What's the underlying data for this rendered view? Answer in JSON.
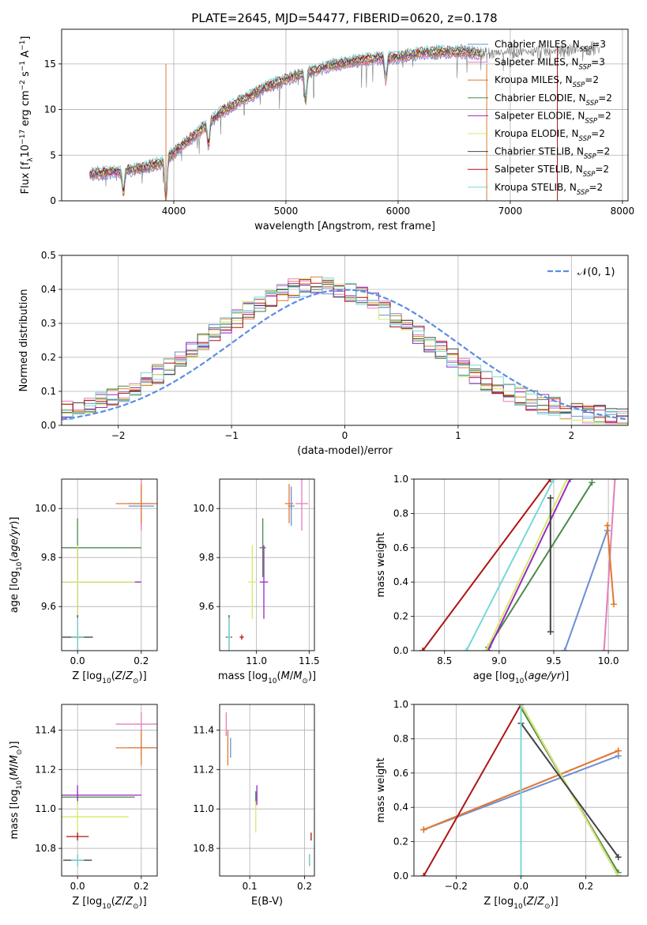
{
  "figure_title": "PLATE=2645, MJD=54477, FIBERID=0620, z=0.178",
  "colors": {
    "Chabrier MILES": "#6b8ed6",
    "Salpeter MILES": "#e47fbb",
    "Kroupa MILES": "#e07a2e",
    "Chabrier ELODIE": "#4c8a4c",
    "Salpeter ELODIE": "#9b27c4",
    "Kroupa ELODIE": "#d4ea6a",
    "Chabrier STELIB": "#444444",
    "Salpeter STELIB": "#b01414",
    "Kroupa STELIB": "#78d8d8",
    "normal": "#5b8ee0",
    "data": "#7f7f7f"
  },
  "chart_data": [
    {
      "type": "line",
      "id": "spectrum",
      "xlabel": "wavelength [Angstrom, rest frame]",
      "ylabel": "Flux [fλ10⁻¹⁷ erg cm⁻² s⁻¹ A⁻¹]",
      "xlim": [
        3000,
        8050
      ],
      "ylim": [
        0,
        18.8
      ],
      "xticks": [
        4000,
        5000,
        6000,
        7000,
        8000
      ],
      "yticks": [
        0,
        5,
        10,
        15
      ],
      "legend": "top-right",
      "legend_entries": [
        {
          "model": "Chabrier MILES",
          "nssp": "3"
        },
        {
          "model": "Salpeter MILES",
          "nssp": "3"
        },
        {
          "model": "Kroupa MILES",
          "nssp": "2"
        },
        {
          "model": "Chabrier ELODIE",
          "nssp": "2"
        },
        {
          "model": "Salpeter ELODIE",
          "nssp": "2"
        },
        {
          "model": "Kroupa ELODIE",
          "nssp": "2"
        },
        {
          "model": "Chabrier STELIB",
          "nssp": "2"
        },
        {
          "model": "Salpeter STELIB",
          "nssp": "2"
        },
        {
          "model": "Kroupa STELIB",
          "nssp": "2"
        }
      ],
      "continuum": {
        "x": [
          3250,
          3500,
          3700,
          3900,
          4000,
          4200,
          4400,
          4600,
          4800,
          5000,
          5200,
          5400,
          5600,
          5800,
          6000,
          6200,
          6400,
          6600,
          6800,
          7000,
          7200,
          7400,
          7600,
          7800
        ],
        "y": [
          2.9,
          3.2,
          3.5,
          4.2,
          5.3,
          7.3,
          9.5,
          11.0,
          12.3,
          13.3,
          14.1,
          14.8,
          15.3,
          15.6,
          15.7,
          16.2,
          16.3,
          16.3,
          16.0,
          16.5,
          16.3,
          16.4,
          16.6,
          16.7
        ]
      },
      "notches": [
        {
          "x": 3550,
          "depth": 2.5
        },
        {
          "x": 3930,
          "depth": 4.5
        },
        {
          "x": 4310,
          "depth": 2.5
        },
        {
          "x": 5175,
          "depth": 3.0
        },
        {
          "x": 5890,
          "depth": 2.5
        }
      ]
    },
    {
      "type": "step",
      "id": "residuals",
      "xlabel": "(data-model)/error",
      "ylabel": "Normed distribution",
      "xlim": [
        -2.5,
        2.5
      ],
      "ylim": [
        0,
        0.5
      ],
      "xticks": [
        -2,
        -1,
        0,
        1,
        2
      ],
      "yticks": [
        0,
        0.1,
        0.2,
        0.3,
        0.4,
        0.5
      ],
      "legend": "top-right",
      "normal_label": "𝒩(0, 1)",
      "bin_width": 0.1
    },
    {
      "type": "scatter",
      "id": "age_vs_Z",
      "xlabel": "Z [log10(Z/Z⊙)]",
      "ylabel": "age [log10(age/yr)]",
      "xlim": [
        -0.05,
        0.25
      ],
      "ylim": [
        9.42,
        10.12
      ],
      "xticks": [
        0.0,
        0.2
      ],
      "yticks": [
        9.6,
        9.8,
        10.0
      ],
      "points": [
        {
          "model": "Chabrier MILES",
          "x": 0.2,
          "y": 10.01,
          "xerr": 0.04,
          "yerr": 0.08
        },
        {
          "model": "Salpeter MILES",
          "x": 0.2,
          "y": 10.02,
          "xerr": 0.04,
          "yerr": 0.11
        },
        {
          "model": "Kroupa MILES",
          "x": 0.2,
          "y": 10.02,
          "xerr": 0.08,
          "yerr": 0.08
        },
        {
          "model": "Chabrier ELODIE",
          "x": 0.0,
          "y": 9.84,
          "xerr": 0.2,
          "yerr": 0.12
        },
        {
          "model": "Salpeter ELODIE",
          "x": 0.0,
          "y": 9.7,
          "xerr": 0.2,
          "yerr": 0.15
        },
        {
          "model": "Kroupa ELODIE",
          "x": 0.0,
          "y": 9.7,
          "xerr": 0.18,
          "yerr": 0.15
        },
        {
          "model": "Chabrier STELIB",
          "x": 0.0,
          "y": 9.475,
          "xerr": 0.048,
          "yerr": 0.09
        },
        {
          "model": "Salpeter STELIB",
          "x": 0.0,
          "y": 9.475,
          "xerr": 0.02,
          "yerr": 0.01
        },
        {
          "model": "Kroupa STELIB",
          "x": 0.0,
          "y": 9.475,
          "xerr": 0.02,
          "yerr": 0.08
        }
      ]
    },
    {
      "type": "scatter",
      "id": "age_vs_mass",
      "xlabel": "mass [log10(M/M⊙)]",
      "ylabel": "",
      "xlim": [
        10.65,
        11.55
      ],
      "ylim": [
        9.42,
        10.12
      ],
      "xticks": [
        11.0,
        11.5
      ],
      "yticks": [
        9.6,
        9.8,
        10.0
      ],
      "points": [
        {
          "model": "Chabrier MILES",
          "x": 11.33,
          "y": 10.01,
          "xerr": 0.03,
          "yerr": 0.08
        },
        {
          "model": "Salpeter MILES",
          "x": 11.43,
          "y": 10.02,
          "xerr": 0.06,
          "yerr": 0.11
        },
        {
          "model": "Kroupa MILES",
          "x": 11.31,
          "y": 10.02,
          "xerr": 0.04,
          "yerr": 0.08
        },
        {
          "model": "Chabrier ELODIE",
          "x": 11.06,
          "y": 9.84,
          "xerr": 0.03,
          "yerr": 0.12
        },
        {
          "model": "Salpeter ELODIE",
          "x": 11.07,
          "y": 9.7,
          "xerr": 0.04,
          "yerr": 0.15
        },
        {
          "model": "Kroupa ELODIE",
          "x": 10.96,
          "y": 9.7,
          "xerr": 0.04,
          "yerr": 0.15
        },
        {
          "model": "Chabrier STELIB",
          "x": 10.74,
          "y": 9.475,
          "xerr": 0.03,
          "yerr": 0.09
        },
        {
          "model": "Salpeter STELIB",
          "x": 10.86,
          "y": 9.475,
          "xerr": 0.02,
          "yerr": 0.01
        },
        {
          "model": "Kroupa STELIB",
          "x": 10.74,
          "y": 9.475,
          "xerr": 0.02,
          "yerr": 0.08
        }
      ]
    },
    {
      "type": "line",
      "id": "weight_vs_age",
      "xlabel": "age [log10(age/yr)]",
      "ylabel": "mass weight",
      "xlim": [
        8.22,
        10.18
      ],
      "ylim": [
        0,
        1
      ],
      "xticks": [
        8.5,
        9.0,
        9.5,
        10.0
      ],
      "yticks": [
        0,
        0.2,
        0.4,
        0.6,
        0.8,
        1.0
      ],
      "series": [
        {
          "model": "Chabrier MILES",
          "x": [
            9.6,
            9.99
          ],
          "y": [
            0.0,
            0.7
          ]
        },
        {
          "model": "Salpeter MILES",
          "x": [
            9.96,
            10.06
          ],
          "y": [
            0.0,
            1.0
          ]
        },
        {
          "model": "Kroupa MILES",
          "x": [
            9.99,
            10.05
          ],
          "y": [
            0.73,
            0.27
          ]
        },
        {
          "model": "Chabrier ELODIE",
          "x": [
            8.9,
            9.85
          ],
          "y": [
            0.02,
            0.98
          ]
        },
        {
          "model": "Salpeter ELODIE",
          "x": [
            8.9,
            9.65
          ],
          "y": [
            0.0,
            1.0
          ]
        },
        {
          "model": "Kroupa ELODIE",
          "x": [
            8.88,
            9.62
          ],
          "y": [
            0.0,
            1.0
          ]
        },
        {
          "model": "Chabrier STELIB",
          "x": [
            9.47,
            9.47
          ],
          "y": [
            0.89,
            0.11
          ]
        },
        {
          "model": "Salpeter STELIB",
          "x": [
            8.3,
            9.47
          ],
          "y": [
            0.0,
            1.0
          ]
        },
        {
          "model": "Kroupa STELIB",
          "x": [
            8.7,
            9.5
          ],
          "y": [
            0.0,
            1.0
          ]
        }
      ]
    },
    {
      "type": "scatter",
      "id": "mass_vs_Z",
      "xlabel": "Z [log10(Z/Z⊙)]",
      "ylabel": "mass [log10(M/M⊙)]",
      "xlim": [
        -0.05,
        0.25
      ],
      "ylim": [
        10.66,
        11.53
      ],
      "xticks": [
        0.0,
        0.2
      ],
      "yticks": [
        10.8,
        11.0,
        11.2,
        11.4
      ],
      "points": [
        {
          "model": "Chabrier MILES",
          "x": 0.2,
          "y": 11.31,
          "xerr": 0.04,
          "yerr": 0.05
        },
        {
          "model": "Salpeter MILES",
          "x": 0.2,
          "y": 11.43,
          "xerr": 0.08,
          "yerr": 0.06
        },
        {
          "model": "Kroupa MILES",
          "x": 0.2,
          "y": 11.31,
          "xerr": 0.08,
          "yerr": 0.09
        },
        {
          "model": "Chabrier ELODIE",
          "x": 0.0,
          "y": 11.06,
          "xerr": 0.18,
          "yerr": 0.03
        },
        {
          "model": "Salpeter ELODIE",
          "x": 0.0,
          "y": 11.07,
          "xerr": 0.2,
          "yerr": 0.05
        },
        {
          "model": "Kroupa ELODIE",
          "x": 0.0,
          "y": 10.96,
          "xerr": 0.16,
          "yerr": 0.08
        },
        {
          "model": "Chabrier STELIB",
          "x": 0.0,
          "y": 10.74,
          "xerr": 0.045,
          "yerr": 0.03
        },
        {
          "model": "Salpeter STELIB",
          "x": 0.0,
          "y": 10.86,
          "xerr": 0.035,
          "yerr": 0.02
        },
        {
          "model": "Kroupa STELIB",
          "x": 0.0,
          "y": 10.74,
          "xerr": 0.02,
          "yerr": 0.03
        }
      ]
    },
    {
      "type": "scatter",
      "id": "mass_vs_ebv",
      "xlabel": "E(B-V)",
      "ylabel": "",
      "xlim": [
        0.045,
        0.218
      ],
      "ylim": [
        10.66,
        11.53
      ],
      "xticks": [
        0.1,
        0.2
      ],
      "yticks": [
        10.8,
        11.0,
        11.2,
        11.4
      ],
      "points": [
        {
          "model": "Chabrier MILES",
          "x": 0.065,
          "y": 11.31,
          "xerr": 0.0,
          "yerr": 0.05
        },
        {
          "model": "Salpeter MILES",
          "x": 0.057,
          "y": 11.43,
          "xerr": 0.0,
          "yerr": 0.06
        },
        {
          "model": "Kroupa MILES",
          "x": 0.06,
          "y": 11.31,
          "xerr": 0.0,
          "yerr": 0.09
        },
        {
          "model": "Chabrier ELODIE",
          "x": 0.111,
          "y": 11.06,
          "xerr": 0.0,
          "yerr": 0.03
        },
        {
          "model": "Salpeter ELODIE",
          "x": 0.113,
          "y": 11.07,
          "xerr": 0.0,
          "yerr": 0.05
        },
        {
          "model": "Kroupa ELODIE",
          "x": 0.111,
          "y": 10.96,
          "xerr": 0.0,
          "yerr": 0.08
        },
        {
          "model": "Chabrier STELIB",
          "x": 0.209,
          "y": 10.74,
          "xerr": 0.0,
          "yerr": 0.03
        },
        {
          "model": "Salpeter STELIB",
          "x": 0.212,
          "y": 10.86,
          "xerr": 0.0,
          "yerr": 0.02
        },
        {
          "model": "Kroupa STELIB",
          "x": 0.209,
          "y": 10.74,
          "xerr": 0.0,
          "yerr": 0.03
        }
      ]
    },
    {
      "type": "line",
      "id": "weight_vs_Z",
      "xlabel": "Z [log10(Z/Z⊙)]",
      "ylabel": "mass weight",
      "xlim": [
        -0.33,
        0.33
      ],
      "ylim": [
        0,
        1
      ],
      "xticks": [
        -0.2,
        0.0,
        0.2
      ],
      "yticks": [
        0,
        0.2,
        0.4,
        0.6,
        0.8,
        1.0
      ],
      "series": [
        {
          "model": "Chabrier MILES",
          "x": [
            -0.3,
            0.3
          ],
          "y": [
            0.27,
            0.7
          ]
        },
        {
          "model": "Salpeter MILES",
          "x": [
            -0.3,
            0.3
          ],
          "y": [
            0.27,
            0.73
          ]
        },
        {
          "model": "Kroupa MILES",
          "x": [
            -0.3,
            0.3
          ],
          "y": [
            0.27,
            0.73
          ]
        },
        {
          "model": "Chabrier ELODIE",
          "x": [
            0.0,
            0.3
          ],
          "y": [
            0.98,
            0.02
          ]
        },
        {
          "model": "Salpeter ELODIE",
          "x": [
            0.0,
            0.3
          ],
          "y": [
            1.0,
            0.0
          ]
        },
        {
          "model": "Kroupa ELODIE",
          "x": [
            0.0,
            0.3
          ],
          "y": [
            1.0,
            0.0
          ]
        },
        {
          "model": "Chabrier STELIB",
          "x": [
            0.0,
            0.3
          ],
          "y": [
            0.89,
            0.11
          ]
        },
        {
          "model": "Salpeter STELIB",
          "x": [
            -0.3,
            0.0
          ],
          "y": [
            0.0,
            1.0
          ]
        },
        {
          "model": "Kroupa STELIB",
          "x": [
            0.0,
            0.0
          ],
          "y": [
            0.0,
            1.0
          ]
        }
      ]
    }
  ]
}
